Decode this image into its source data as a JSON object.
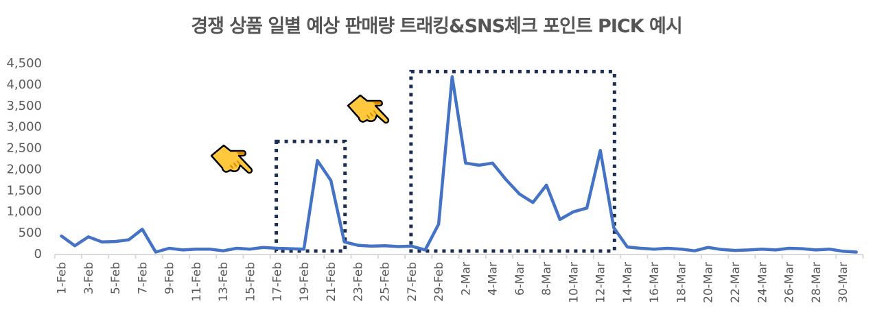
{
  "title": "경쟁 상품 일별 예상 판매량 트래킹&SNS체크 포인트 PICK 예시",
  "colors": {
    "line": "#4472C4",
    "highlight_box": "#1B2D50",
    "axis": "#D9D9D9",
    "text": "#595959",
    "pointer_fill": "#FFC83D",
    "pointer_shade": "#D98C00"
  },
  "chart_data": {
    "type": "line",
    "title": "경쟁 상품 일별 예상 판매량 트래킹&SNS체크 포인트 PICK 예시",
    "xlabel": "",
    "ylabel": "",
    "ylim": [
      0,
      4500
    ],
    "yticks": [
      "0",
      "500",
      "1,000",
      "1,500",
      "2,000",
      "2,500",
      "3,000",
      "3,500",
      "4,000",
      "4,500"
    ],
    "grid": false,
    "legend": null,
    "x_tick_labels": [
      "1-Feb",
      "3-Feb",
      "5-Feb",
      "7-Feb",
      "9-Feb",
      "11-Feb",
      "13-Feb",
      "15-Feb",
      "17-Feb",
      "19-Feb",
      "21-Feb",
      "23-Feb",
      "25-Feb",
      "27-Feb",
      "29-Feb",
      "2-Mar",
      "4-Mar",
      "6-Mar",
      "8-Mar",
      "10-Mar",
      "12-Mar",
      "14-Mar",
      "16-Mar",
      "18-Mar",
      "20-Mar",
      "22-Mar",
      "24-Mar",
      "26-Mar",
      "28-Mar",
      "30-Mar"
    ],
    "x": [
      "1-Feb",
      "2-Feb",
      "3-Feb",
      "4-Feb",
      "5-Feb",
      "6-Feb",
      "7-Feb",
      "8-Feb",
      "9-Feb",
      "10-Feb",
      "11-Feb",
      "12-Feb",
      "13-Feb",
      "14-Feb",
      "15-Feb",
      "16-Feb",
      "17-Feb",
      "18-Feb",
      "19-Feb",
      "20-Feb",
      "21-Feb",
      "22-Feb",
      "23-Feb",
      "24-Feb",
      "25-Feb",
      "26-Feb",
      "27-Feb",
      "28-Feb",
      "29-Feb",
      "1-Mar",
      "2-Mar",
      "3-Mar",
      "4-Mar",
      "5-Mar",
      "6-Mar",
      "7-Mar",
      "8-Mar",
      "9-Mar",
      "10-Mar",
      "11-Mar",
      "12-Mar",
      "13-Mar",
      "14-Mar",
      "15-Mar",
      "16-Mar",
      "17-Mar",
      "18-Mar",
      "19-Mar",
      "20-Mar",
      "21-Mar",
      "22-Mar",
      "23-Mar",
      "24-Mar",
      "25-Mar",
      "26-Mar",
      "27-Mar",
      "28-Mar",
      "29-Mar",
      "30-Mar",
      "31-Mar"
    ],
    "series": [
      {
        "name": "예상 판매량",
        "values": [
          420,
          190,
          400,
          280,
          290,
          330,
          580,
          40,
          130,
          90,
          110,
          110,
          70,
          130,
          110,
          150,
          130,
          120,
          110,
          2200,
          1730,
          280,
          200,
          180,
          190,
          170,
          180,
          90,
          700,
          4180,
          2140,
          2090,
          2140,
          1750,
          1410,
          1210,
          1620,
          810,
          990,
          1080,
          2440,
          615,
          160,
          130,
          110,
          130,
          110,
          70,
          150,
          100,
          80,
          90,
          110,
          90,
          130,
          120,
          90,
          110,
          60,
          40
        ]
      }
    ],
    "annotations": [
      {
        "type": "dotted-box",
        "label": "highlight-1",
        "x_from": "17-Feb",
        "x_to": "22-Feb",
        "y_top": 2650
      },
      {
        "type": "dotted-box",
        "label": "highlight-2",
        "x_from": "27-Feb",
        "x_to": "13-Mar",
        "y_top": 4300
      },
      {
        "type": "icon",
        "icon": "pointing-hand-icon",
        "near": "highlight-1"
      },
      {
        "type": "icon",
        "icon": "pointing-hand-icon",
        "near": "highlight-2"
      }
    ]
  }
}
